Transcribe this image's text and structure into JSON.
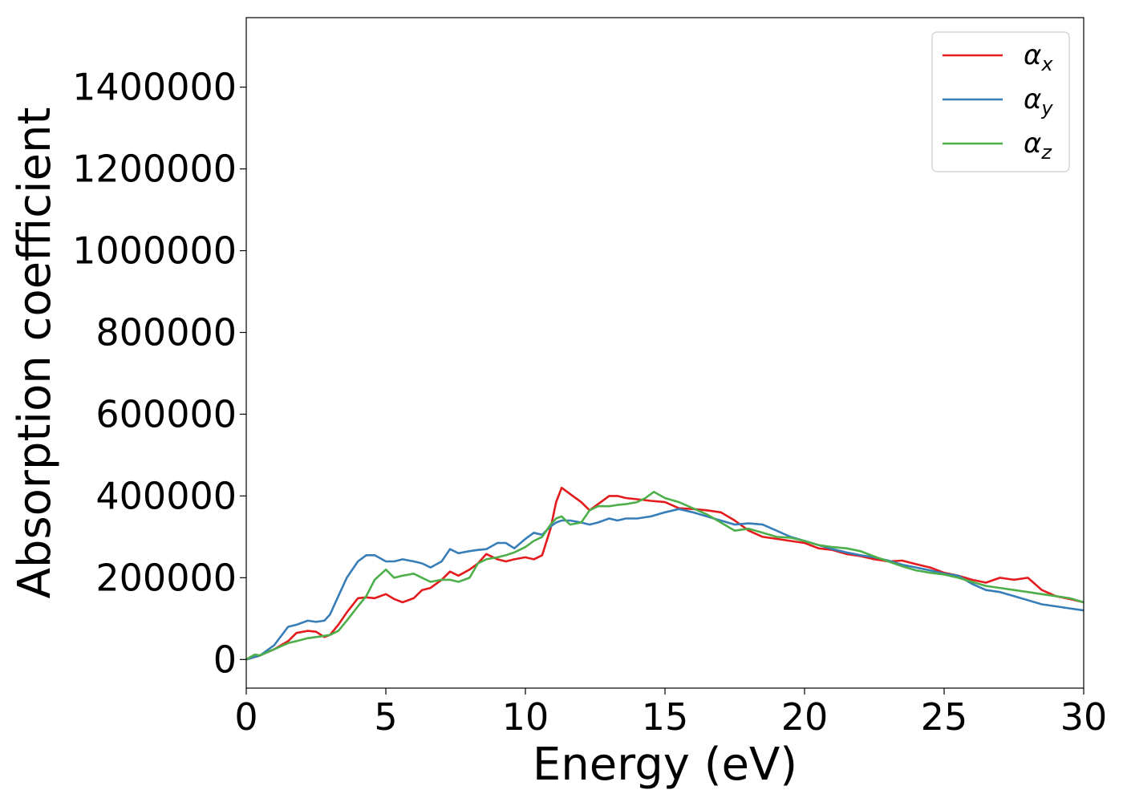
{
  "chart_data": {
    "type": "line",
    "title": "",
    "xlabel": "Energy (eV)",
    "ylabel": "Absorption coefficient",
    "xlim": [
      0,
      30
    ],
    "ylim": [
      -70000,
      1570000
    ],
    "xticks": [
      0,
      5,
      10,
      15,
      20,
      25,
      30
    ],
    "yticks": [
      0,
      200000,
      400000,
      600000,
      800000,
      1000000,
      1200000,
      1400000
    ],
    "grid": false,
    "legend_position": "top-right",
    "series": [
      {
        "name": "α",
        "subscript": "x",
        "color": "#e41a1c",
        "x": [
          0,
          0.5,
          1,
          1.5,
          1.8,
          2.2,
          2.5,
          2.8,
          3,
          3.3,
          3.6,
          4,
          4.3,
          4.6,
          5,
          5.3,
          5.6,
          6,
          6.3,
          6.6,
          7,
          7.3,
          7.6,
          8,
          8.3,
          8.6,
          9,
          9.3,
          9.6,
          10,
          10.3,
          10.6,
          10.9,
          11.1,
          11.3,
          11.6,
          12,
          12.3,
          12.6,
          13,
          13.3,
          13.6,
          14,
          14.5,
          15,
          15.5,
          16,
          16.5,
          17,
          17.5,
          18,
          18.5,
          19,
          19.5,
          20,
          20.5,
          21,
          21.5,
          22,
          22.5,
          23,
          23.5,
          24,
          24.5,
          25,
          25.5,
          26,
          26.5,
          27,
          27.5,
          28,
          28.5,
          29,
          29.5,
          30
        ],
        "y": [
          0,
          10000,
          25000,
          45000,
          65000,
          70000,
          68000,
          55000,
          60000,
          85000,
          115000,
          150000,
          152000,
          150000,
          160000,
          148000,
          140000,
          150000,
          170000,
          175000,
          195000,
          215000,
          205000,
          220000,
          235000,
          258000,
          245000,
          240000,
          245000,
          250000,
          245000,
          255000,
          320000,
          385000,
          420000,
          405000,
          385000,
          365000,
          380000,
          400000,
          400000,
          395000,
          392000,
          388000,
          385000,
          370000,
          368000,
          365000,
          360000,
          340000,
          315000,
          300000,
          295000,
          290000,
          285000,
          272000,
          268000,
          258000,
          253000,
          245000,
          240000,
          242000,
          233000,
          225000,
          212000,
          205000,
          195000,
          188000,
          200000,
          195000,
          200000,
          170000,
          155000,
          148000,
          140000
        ]
      },
      {
        "name": "α",
        "subscript": "y",
        "color": "#377eb8",
        "x": [
          0,
          0.5,
          1,
          1.5,
          1.8,
          2.2,
          2.5,
          2.8,
          3,
          3.3,
          3.6,
          4,
          4.3,
          4.6,
          5,
          5.3,
          5.6,
          6,
          6.3,
          6.6,
          7,
          7.3,
          7.6,
          8,
          8.3,
          8.6,
          9,
          9.3,
          9.6,
          10,
          10.3,
          10.6,
          10.9,
          11.1,
          11.3,
          11.6,
          12,
          12.3,
          12.6,
          13,
          13.3,
          13.6,
          14,
          14.5,
          15,
          15.5,
          16,
          16.5,
          17,
          17.5,
          18,
          18.5,
          19,
          19.5,
          20,
          20.5,
          21,
          21.5,
          22,
          22.5,
          23,
          23.5,
          24,
          24.5,
          25,
          25.5,
          26,
          26.5,
          27,
          27.5,
          28,
          28.5,
          29,
          29.5,
          30
        ],
        "y": [
          0,
          10000,
          35000,
          80000,
          85000,
          95000,
          92000,
          95000,
          110000,
          155000,
          200000,
          240000,
          255000,
          255000,
          240000,
          240000,
          245000,
          240000,
          235000,
          225000,
          240000,
          270000,
          260000,
          265000,
          268000,
          270000,
          285000,
          285000,
          272000,
          295000,
          310000,
          305000,
          325000,
          335000,
          340000,
          340000,
          335000,
          330000,
          335000,
          345000,
          340000,
          345000,
          345000,
          350000,
          360000,
          368000,
          360000,
          350000,
          340000,
          330000,
          333000,
          330000,
          315000,
          300000,
          290000,
          280000,
          270000,
          262000,
          255000,
          250000,
          242000,
          232000,
          225000,
          218000,
          210000,
          205000,
          185000,
          170000,
          165000,
          155000,
          145000,
          135000,
          130000,
          125000,
          120000
        ]
      },
      {
        "name": "α",
        "subscript": "z",
        "color": "#4daf4a",
        "x": [
          0,
          0.3,
          0.5,
          1,
          1.5,
          1.8,
          2.2,
          2.5,
          2.8,
          3,
          3.3,
          3.6,
          4,
          4.3,
          4.6,
          5,
          5.3,
          5.6,
          6,
          6.3,
          6.6,
          7,
          7.3,
          7.6,
          8,
          8.3,
          8.6,
          9,
          9.3,
          9.6,
          10,
          10.3,
          10.6,
          10.9,
          11.1,
          11.3,
          11.6,
          12,
          12.3,
          12.6,
          13,
          13.3,
          13.6,
          14,
          14.3,
          14.6,
          15,
          15.5,
          16,
          16.5,
          17,
          17.5,
          18,
          18.5,
          19,
          19.5,
          20,
          20.5,
          21,
          21.5,
          22,
          22.5,
          23,
          23.5,
          24,
          24.5,
          25,
          25.5,
          26,
          26.5,
          27,
          27.5,
          28,
          28.5,
          29,
          29.5,
          30
        ],
        "y": [
          0,
          12000,
          10000,
          25000,
          40000,
          45000,
          52000,
          55000,
          58000,
          60000,
          70000,
          95000,
          130000,
          155000,
          195000,
          220000,
          200000,
          205000,
          210000,
          200000,
          190000,
          195000,
          195000,
          190000,
          200000,
          235000,
          245000,
          250000,
          255000,
          262000,
          275000,
          290000,
          300000,
          330000,
          345000,
          350000,
          330000,
          335000,
          365000,
          375000,
          375000,
          378000,
          380000,
          385000,
          395000,
          410000,
          395000,
          385000,
          370000,
          355000,
          335000,
          315000,
          320000,
          310000,
          300000,
          298000,
          290000,
          280000,
          275000,
          272000,
          265000,
          252000,
          240000,
          228000,
          218000,
          212000,
          208000,
          200000,
          190000,
          180000,
          175000,
          170000,
          165000,
          160000,
          155000,
          150000,
          140000
        ]
      }
    ]
  }
}
